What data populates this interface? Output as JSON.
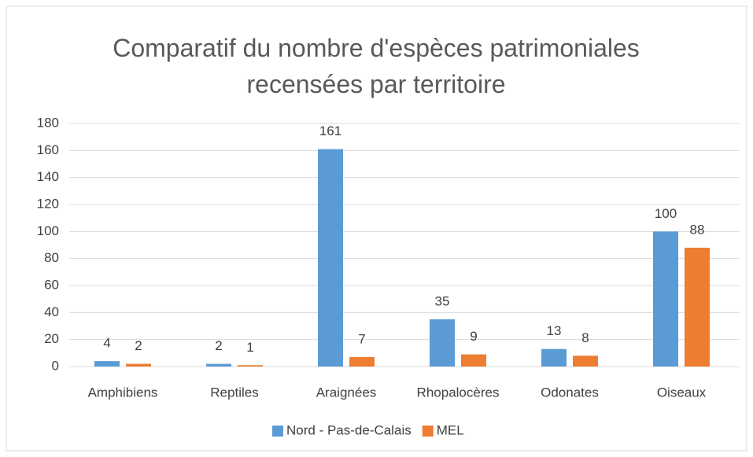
{
  "chart_data": {
    "type": "bar",
    "title": "Comparatif du nombre d'espèces patrimoniales recensées par territoire",
    "categories": [
      "Amphibiens",
      "Reptiles",
      "Araignées",
      "Rhopalocères",
      "Odonates",
      "Oiseaux"
    ],
    "series": [
      {
        "name": "Nord - Pas-de-Calais",
        "color": "#5b9bd5",
        "values": [
          4,
          2,
          161,
          35,
          13,
          100
        ]
      },
      {
        "name": "MEL",
        "color": "#ed7d31",
        "values": [
          2,
          1,
          7,
          9,
          8,
          88
        ]
      }
    ],
    "ylim": [
      0,
      180
    ],
    "yticks": [
      0,
      20,
      40,
      60,
      80,
      100,
      120,
      140,
      160,
      180
    ],
    "grid": true,
    "legend": "bottom",
    "data_labels": true
  }
}
